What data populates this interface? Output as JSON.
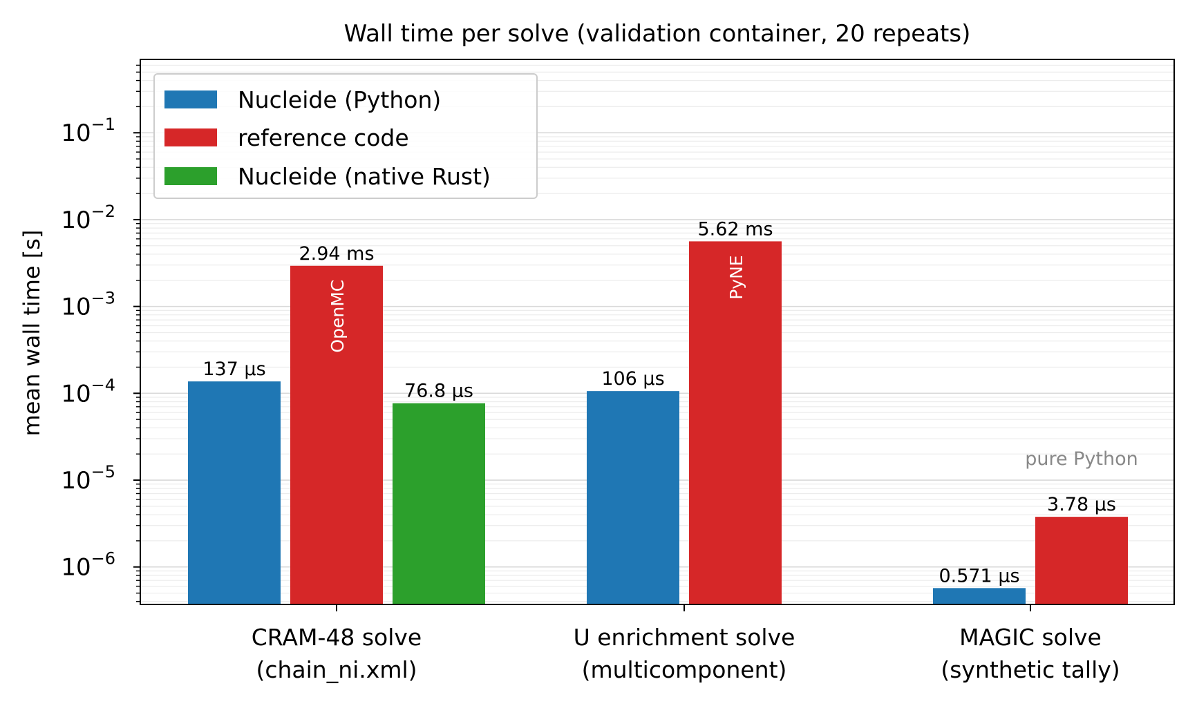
{
  "chart_data": {
    "type": "bar",
    "title": "Wall time per solve (validation container, 20 repeats)",
    "xlabel": "",
    "ylabel": "mean wall time [s]",
    "yscale": "log",
    "ylim": [
      3.7e-07,
      0.7
    ],
    "grid": "y, major and minor",
    "legend_position": "top-left",
    "categories": [
      [
        "CRAM-48 solve",
        "(chain_ni.xml)"
      ],
      [
        "U enrichment solve",
        "(multicomponent)"
      ],
      [
        "MAGIC solve",
        "(synthetic tally)"
      ]
    ],
    "y_ticks": [
      {
        "value": 1e-06,
        "base": "10",
        "exp": "−6"
      },
      {
        "value": 1e-05,
        "base": "10",
        "exp": "−5"
      },
      {
        "value": 0.0001,
        "base": "10",
        "exp": "−4"
      },
      {
        "value": 0.001,
        "base": "10",
        "exp": "−3"
      },
      {
        "value": 0.01,
        "base": "10",
        "exp": "−2"
      },
      {
        "value": 0.1,
        "base": "10",
        "exp": "−1"
      }
    ],
    "series": [
      {
        "name": "Nucleide (Python)",
        "color": "#1f77b4",
        "values": [
          0.000137,
          0.000106,
          5.71e-07
        ],
        "labels": [
          "137 µs",
          "106 µs",
          "0.571 µs"
        ]
      },
      {
        "name": "reference code",
        "color": "#d62728",
        "values": [
          0.00294,
          0.00562,
          3.78e-06
        ],
        "labels": [
          "2.94 ms",
          "5.62 ms",
          "3.78 µs"
        ],
        "bar_annotations": [
          "OpenMC",
          "PyNE",
          "pure Python"
        ]
      },
      {
        "name": "Nucleide (native Rust)",
        "color": "#2ca02c",
        "values": [
          7.68e-05,
          null,
          null
        ],
        "labels": [
          "76.8 µs",
          null,
          null
        ]
      }
    ]
  }
}
